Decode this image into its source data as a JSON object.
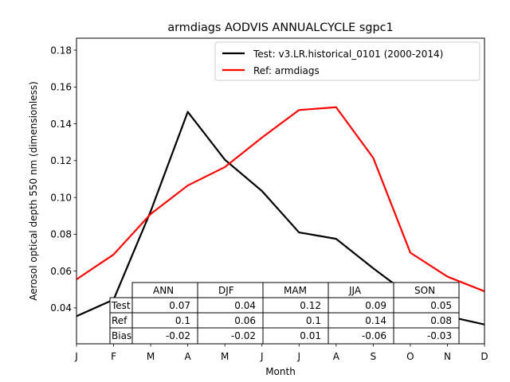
{
  "chart_data": {
    "type": "line",
    "title": "armdiags AODVIS ANNUALCYCLE sgpc1",
    "xlabel": "Month",
    "ylabel": "Aerosol optical depth 550 nm (dimensionless)",
    "categories": [
      "J",
      "F",
      "M",
      "A",
      "M",
      "J",
      "J",
      "A",
      "S",
      "O",
      "N",
      "D"
    ],
    "yticks": [
      0.04,
      0.06,
      0.08,
      0.1,
      0.12,
      0.14,
      0.16,
      0.18
    ],
    "ytick_labels": [
      "0.04",
      "0.06",
      "0.08",
      "0.10",
      "0.12",
      "0.14",
      "0.16",
      "0.18"
    ],
    "ylim": [
      0.0205,
      0.1865
    ],
    "legend_position": "top-right",
    "series": [
      {
        "name": "Test: v3.LR.historical_0101 (2000-2014)",
        "color": "#000000",
        "values": [
          0.0355,
          0.0445,
          0.0925,
          0.1465,
          0.1205,
          0.1035,
          0.081,
          0.0775,
          0.0615,
          0.0465,
          0.0355,
          0.031
        ]
      },
      {
        "name": "Ref: armdiags",
        "color": "#ff0000",
        "values": [
          0.0555,
          0.069,
          0.091,
          0.1065,
          0.1165,
          0.1325,
          0.1475,
          0.149,
          0.1215,
          0.07,
          0.057,
          0.049
        ]
      }
    ],
    "table": {
      "columns": [
        "ANN",
        "DJF",
        "MAM",
        "JJA",
        "SON"
      ],
      "rows": [
        {
          "label": "Test",
          "values": [
            "0.07",
            "0.04",
            "0.12",
            "0.09",
            "0.05"
          ]
        },
        {
          "label": "Ref",
          "values": [
            "0.1",
            "0.06",
            "0.1",
            "0.14",
            "0.08"
          ]
        },
        {
          "label": "Bias",
          "values": [
            "-0.02",
            "-0.02",
            "0.01",
            "-0.06",
            "-0.03"
          ]
        }
      ]
    }
  }
}
